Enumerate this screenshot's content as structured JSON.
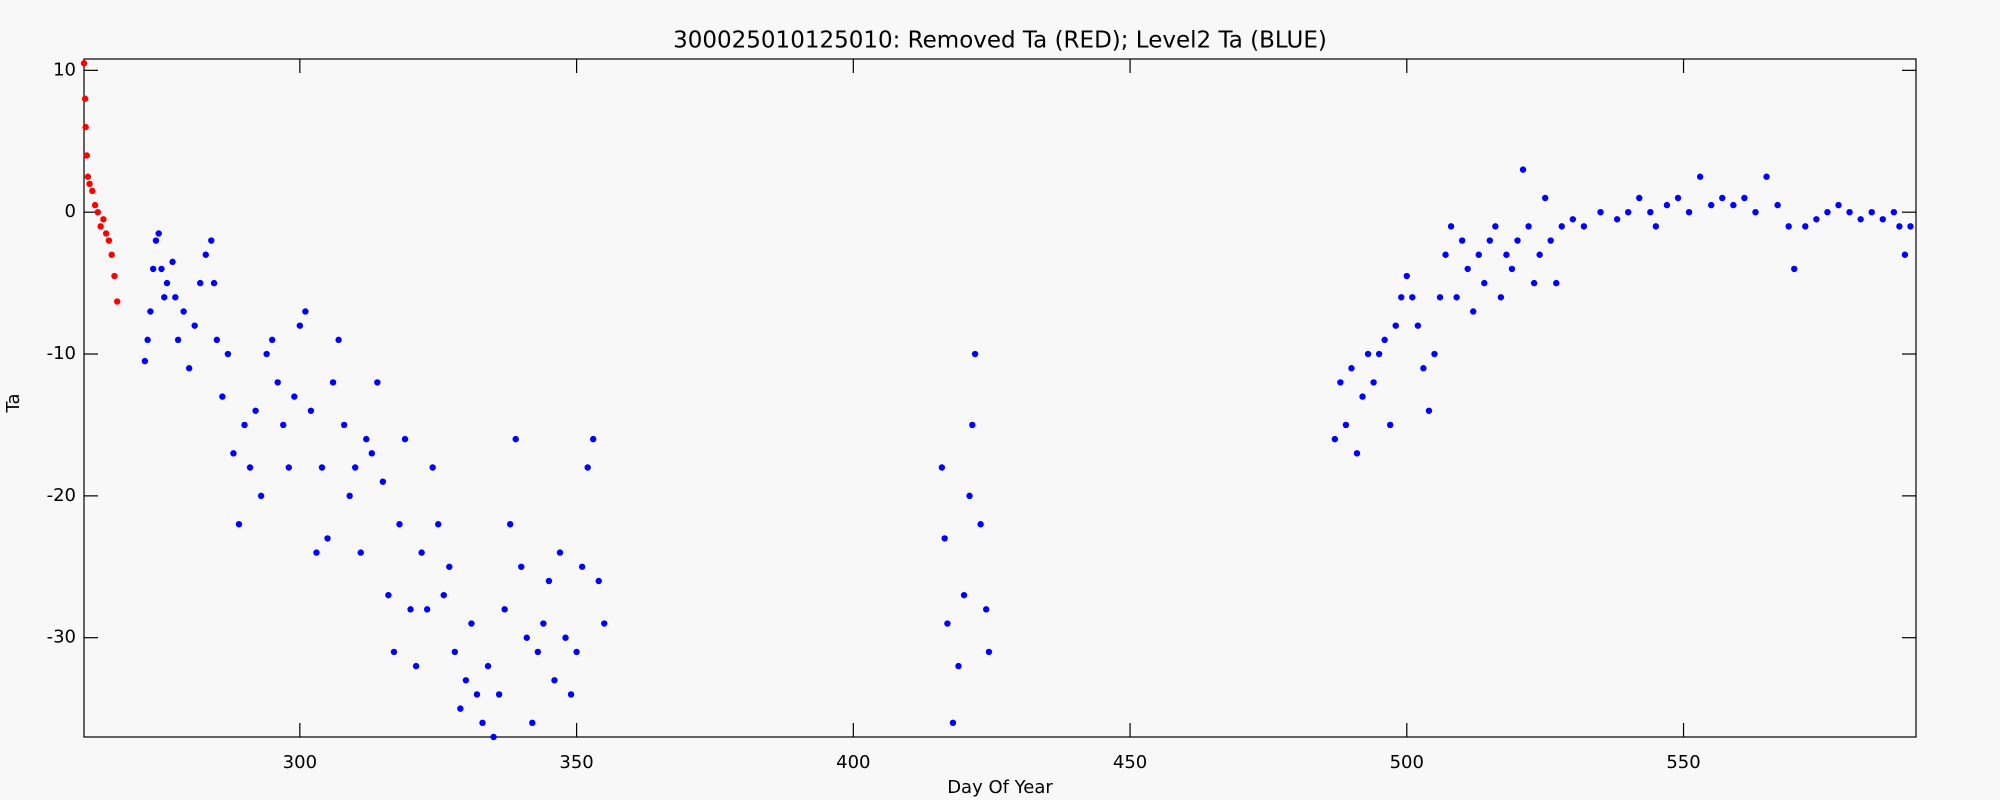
{
  "chart_data": {
    "type": "scatter",
    "title": "300025010125010: Removed Ta (RED); Level2 Ta (BLUE)",
    "x_label": "Day Of Year",
    "y_label": "Ta",
    "xlim": [
      261,
      592
    ],
    "ylim": [
      -37,
      10.8
    ],
    "xticks": [
      300,
      350,
      400,
      450,
      500,
      550
    ],
    "yticks": [
      -30,
      -20,
      -10,
      0,
      10
    ],
    "series": [
      {
        "color": "#ff0000",
        "x": [
          261,
          261.2,
          261.3,
          261.5,
          261.7,
          262,
          262.5,
          263,
          263.5,
          264,
          264.5,
          265,
          265.5,
          266,
          266.5,
          267
        ],
        "values": [
          10.5,
          8,
          6,
          4,
          2.5,
          2,
          1.5,
          0.5,
          0,
          -1,
          -0.5,
          -1.5,
          -2,
          -3,
          -4.5,
          -6.3
        ]
      },
      {
        "color": "#0000ff",
        "x": [
          272,
          272.5,
          273,
          273.5,
          274,
          274.5,
          275,
          275.5,
          276,
          277,
          277.5,
          278,
          279,
          280,
          281,
          282,
          283,
          284,
          284.5,
          285,
          286,
          287,
          288,
          289,
          290,
          291,
          292,
          293,
          294,
          295,
          296,
          297,
          298,
          299,
          300,
          301,
          302,
          303,
          304,
          305,
          306,
          307,
          308,
          309,
          310,
          311,
          312,
          313,
          314,
          315,
          316,
          317,
          318,
          319,
          320,
          321,
          322,
          323,
          324,
          325,
          326,
          327,
          328,
          329,
          330,
          331,
          332,
          333,
          334,
          335,
          336,
          337,
          338,
          339,
          340,
          341,
          342,
          343,
          344,
          345,
          346,
          347,
          348,
          349,
          350,
          351,
          352,
          353,
          354,
          355,
          416,
          416.5,
          417,
          418,
          419,
          420,
          421,
          421.5,
          422,
          423,
          424,
          424.5,
          487,
          488,
          489,
          490,
          491,
          492,
          493,
          494,
          495,
          496,
          497,
          498,
          499,
          500,
          501,
          502,
          503,
          504,
          505,
          506,
          507,
          508,
          509,
          510,
          511,
          512,
          513,
          514,
          515,
          516,
          517,
          518,
          519,
          520,
          521,
          522,
          523,
          524,
          525,
          526,
          527,
          528,
          530,
          532,
          535,
          538,
          540,
          542,
          544,
          545,
          547,
          549,
          551,
          553,
          555,
          557,
          559,
          561,
          563,
          565,
          567,
          569,
          570,
          572,
          574,
          576,
          578,
          580,
          582,
          584,
          586,
          588,
          589,
          590,
          591
        ],
        "values": [
          -10.5,
          -9,
          -7,
          -4,
          -2,
          -1.5,
          -4,
          -6,
          -5,
          -3.5,
          -6,
          -9,
          -7,
          -11,
          -8,
          -5,
          -3,
          -2,
          -5,
          -9,
          -13,
          -10,
          -17,
          -22,
          -15,
          -18,
          -14,
          -20,
          -10,
          -9,
          -12,
          -15,
          -18,
          -13,
          -8,
          -7,
          -14,
          -24,
          -18,
          -23,
          -12,
          -9,
          -15,
          -20,
          -18,
          -24,
          -16,
          -17,
          -12,
          -19,
          -27,
          -31,
          -22,
          -16,
          -28,
          -32,
          -24,
          -28,
          -18,
          -22,
          -27,
          -25,
          -31,
          -35,
          -33,
          -29,
          -34,
          -36,
          -32,
          -37,
          -34,
          -28,
          -22,
          -16,
          -25,
          -30,
          -36,
          -31,
          -29,
          -26,
          -33,
          -24,
          -30,
          -34,
          -31,
          -25,
          -18,
          -16,
          -26,
          -29,
          -18,
          -23,
          -29,
          -36,
          -32,
          -27,
          -20,
          -15,
          -10,
          -22,
          -28,
          -31,
          -16,
          -12,
          -15,
          -11,
          -17,
          -13,
          -10,
          -12,
          -10,
          -9,
          -15,
          -8,
          -6,
          -4.5,
          -6,
          -8,
          -11,
          -14,
          -10,
          -6,
          -3,
          -1,
          -6,
          -2,
          -4,
          -7,
          -3,
          -5,
          -2,
          -1,
          -6,
          -3,
          -4,
          -2,
          3,
          -1,
          -5,
          -3,
          1,
          -2,
          -5,
          -1,
          -0.5,
          -1,
          0,
          -0.5,
          0,
          1,
          0,
          -1,
          0.5,
          1,
          0,
          2.5,
          0.5,
          1,
          0.5,
          1,
          0,
          2.5,
          0.5,
          -1,
          -4,
          -1,
          -0.5,
          0,
          0.5,
          0,
          -0.5,
          0,
          -0.5,
          0,
          -1,
          -3,
          -1
        ]
      }
    ]
  }
}
